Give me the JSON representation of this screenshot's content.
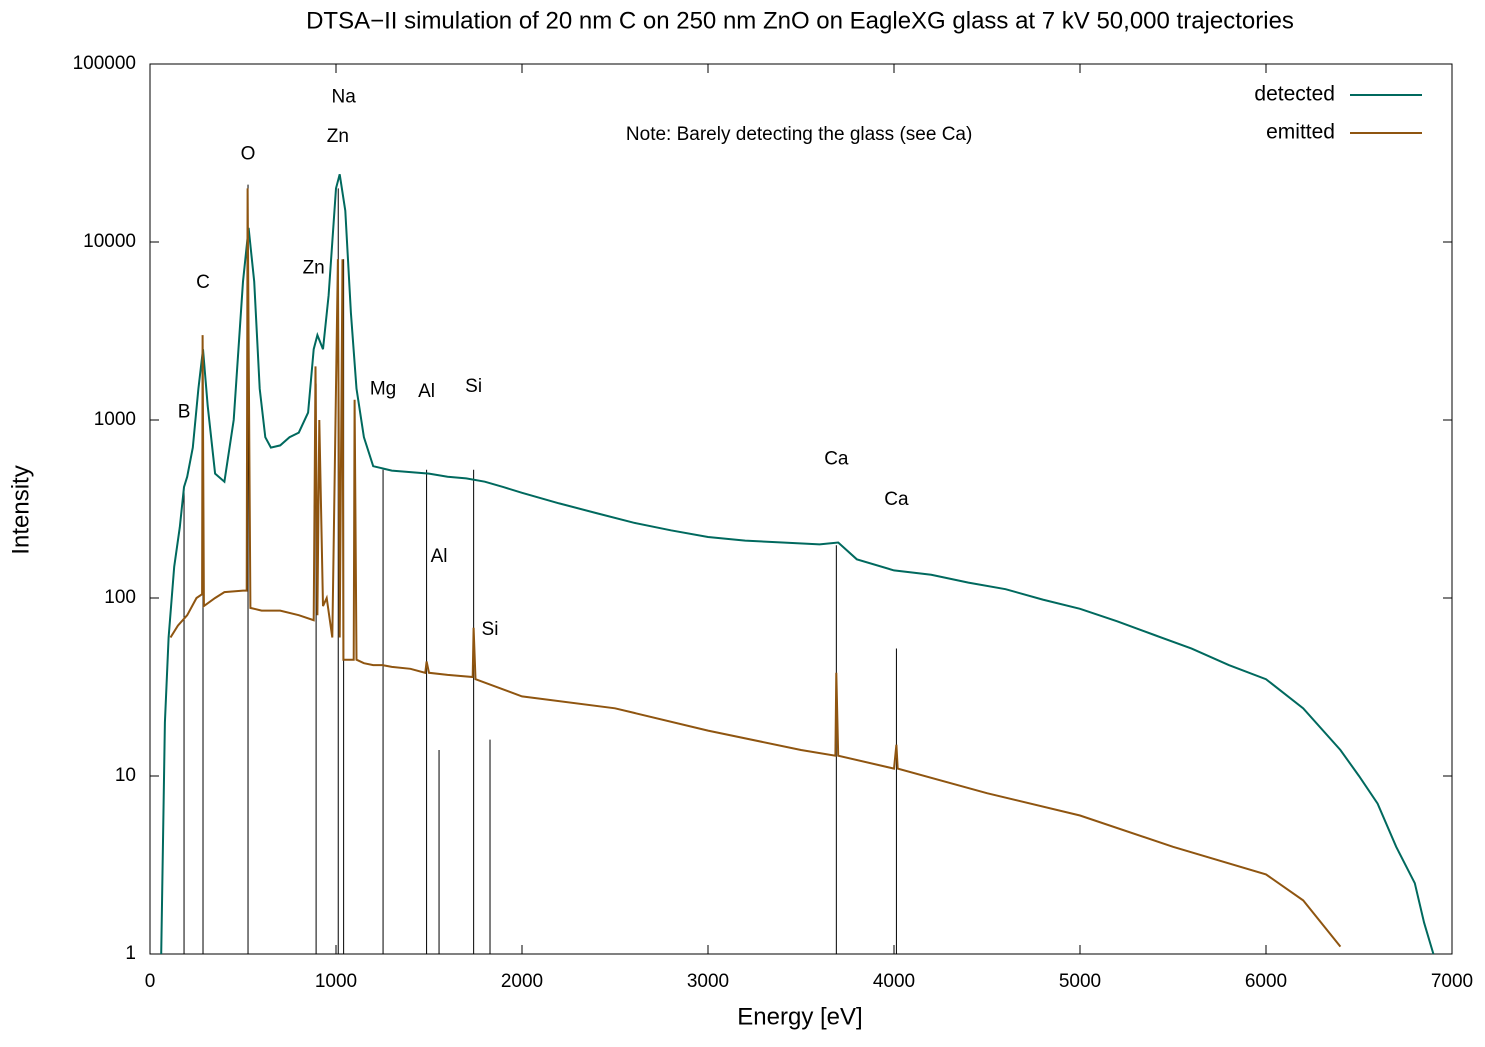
{
  "chart_data": {
    "type": "line",
    "title": "DTSA−II simulation of 20 nm C on 250 nm ZnO on EagleXG glass at 7 kV 50,000 trajectories",
    "x_label": "Energy [eV]",
    "y_label": "Intensity",
    "xlim": [
      0,
      7000
    ],
    "xticks": [
      0,
      1000,
      2000,
      3000,
      4000,
      5000,
      6000,
      7000
    ],
    "ylim": [
      1,
      100000
    ],
    "yticks": [
      1,
      10,
      100,
      1000,
      10000,
      100000
    ],
    "yscale": "log",
    "legend": "top-right",
    "series": [
      {
        "name": "detected",
        "color": "#00695e",
        "x": [
          60,
          80,
          100,
          130,
          160,
          183,
          200,
          230,
          260,
          285,
          310,
          350,
          400,
          450,
          500,
          530,
          560,
          590,
          620,
          650,
          700,
          750,
          800,
          850,
          880,
          900,
          930,
          960,
          1000,
          1020,
          1050,
          1080,
          1110,
          1150,
          1200,
          1300,
          1400,
          1500,
          1600,
          1700,
          1800,
          1900,
          2000,
          2200,
          2400,
          2600,
          2800,
          3000,
          3200,
          3400,
          3600,
          3700,
          3800,
          4000,
          4200,
          4400,
          4600,
          4800,
          5000,
          5200,
          5400,
          5600,
          5800,
          6000,
          6200,
          6400,
          6500,
          6600,
          6700,
          6800,
          6850,
          6900
        ],
        "values": [
          1,
          20,
          60,
          150,
          250,
          420,
          480,
          700,
          1500,
          2500,
          1200,
          500,
          450,
          1000,
          6000,
          12000,
          6000,
          1500,
          800,
          700,
          720,
          800,
          850,
          1100,
          2500,
          3000,
          2500,
          5000,
          20000,
          24000,
          15000,
          4000,
          1500,
          800,
          550,
          520,
          510,
          500,
          480,
          470,
          450,
          420,
          390,
          340,
          300,
          265,
          240,
          220,
          210,
          205,
          200,
          205,
          165,
          143,
          135,
          122,
          112,
          98,
          87,
          74,
          62,
          52,
          42,
          35,
          24,
          14,
          10,
          7,
          4,
          2.5,
          1.5,
          1
        ]
      },
      {
        "name": "emitted",
        "color": "#8f5510",
        "x": [
          110,
          150,
          200,
          250,
          280,
          283,
          290,
          350,
          400,
          500,
          520,
          525,
          540,
          600,
          700,
          800,
          880,
          890,
          900,
          910,
          930,
          950,
          980,
          1010,
          1020,
          1035,
          1040,
          1095,
          1100,
          1110,
          1150,
          1200,
          1250,
          1300,
          1400,
          1480,
          1487,
          1500,
          1600,
          1735,
          1740,
          1750,
          2000,
          2500,
          3000,
          3500,
          3685,
          3690,
          3700,
          4000,
          4013,
          4020,
          4500,
          5000,
          5500,
          6000,
          6200,
          6400
        ],
        "values": [
          60,
          70,
          80,
          100,
          105,
          3000,
          90,
          100,
          108,
          110,
          110,
          20000,
          88,
          85,
          85,
          80,
          75,
          2000,
          80,
          1000,
          90,
          100,
          60,
          8000,
          60,
          8000,
          45,
          45,
          1300,
          45,
          43,
          42,
          42,
          41,
          40,
          38,
          44,
          38,
          37,
          36,
          68,
          35,
          28,
          24,
          18,
          14,
          13,
          38,
          13,
          11,
          15,
          11,
          8,
          6,
          4,
          2.8,
          2,
          1.1
        ]
      }
    ],
    "markers": [
      {
        "x": 183,
        "top": 430
      },
      {
        "x": 285,
        "top": 2800
      },
      {
        "x": 527,
        "top": 21000
      },
      {
        "x": 893,
        "top": 1600
      },
      {
        "x": 1012,
        "top": 20000
      },
      {
        "x": 1041,
        "top": 8000
      },
      {
        "x": 1253,
        "top": 525
      },
      {
        "x": 1487,
        "top": 525
      },
      {
        "x": 1554,
        "top": 14
      },
      {
        "x": 1740,
        "top": 525
      },
      {
        "x": 1828,
        "top": 16
      },
      {
        "x": 3690,
        "top": 198
      },
      {
        "x": 4013,
        "top": 52
      }
    ],
    "annotations": [
      {
        "text": "B",
        "x": 183,
        "y": 1100
      },
      {
        "text": "C",
        "x": 285,
        "y": 5900
      },
      {
        "text": "O",
        "x": 527,
        "y": 31000
      },
      {
        "text": "Zn",
        "x": 880,
        "y": 7100
      },
      {
        "text": "Zn",
        "x": 1010,
        "y": 39000
      },
      {
        "text": "Na",
        "x": 1041,
        "y": 65000
      },
      {
        "text": "Mg",
        "x": 1253,
        "y": 1480
      },
      {
        "text": "Al",
        "x": 1487,
        "y": 1440
      },
      {
        "text": "Si",
        "x": 1740,
        "y": 1530
      },
      {
        "text": "Al",
        "x": 1554,
        "y": 170
      },
      {
        "text": "Si",
        "x": 1828,
        "y": 66
      },
      {
        "text": "Ca",
        "x": 3690,
        "y": 600
      },
      {
        "text": "Ca",
        "x": 4013,
        "y": 355
      },
      {
        "text": "Note: Barely detecting the glass (see Ca)",
        "x": 3490,
        "y": 40000
      }
    ]
  }
}
